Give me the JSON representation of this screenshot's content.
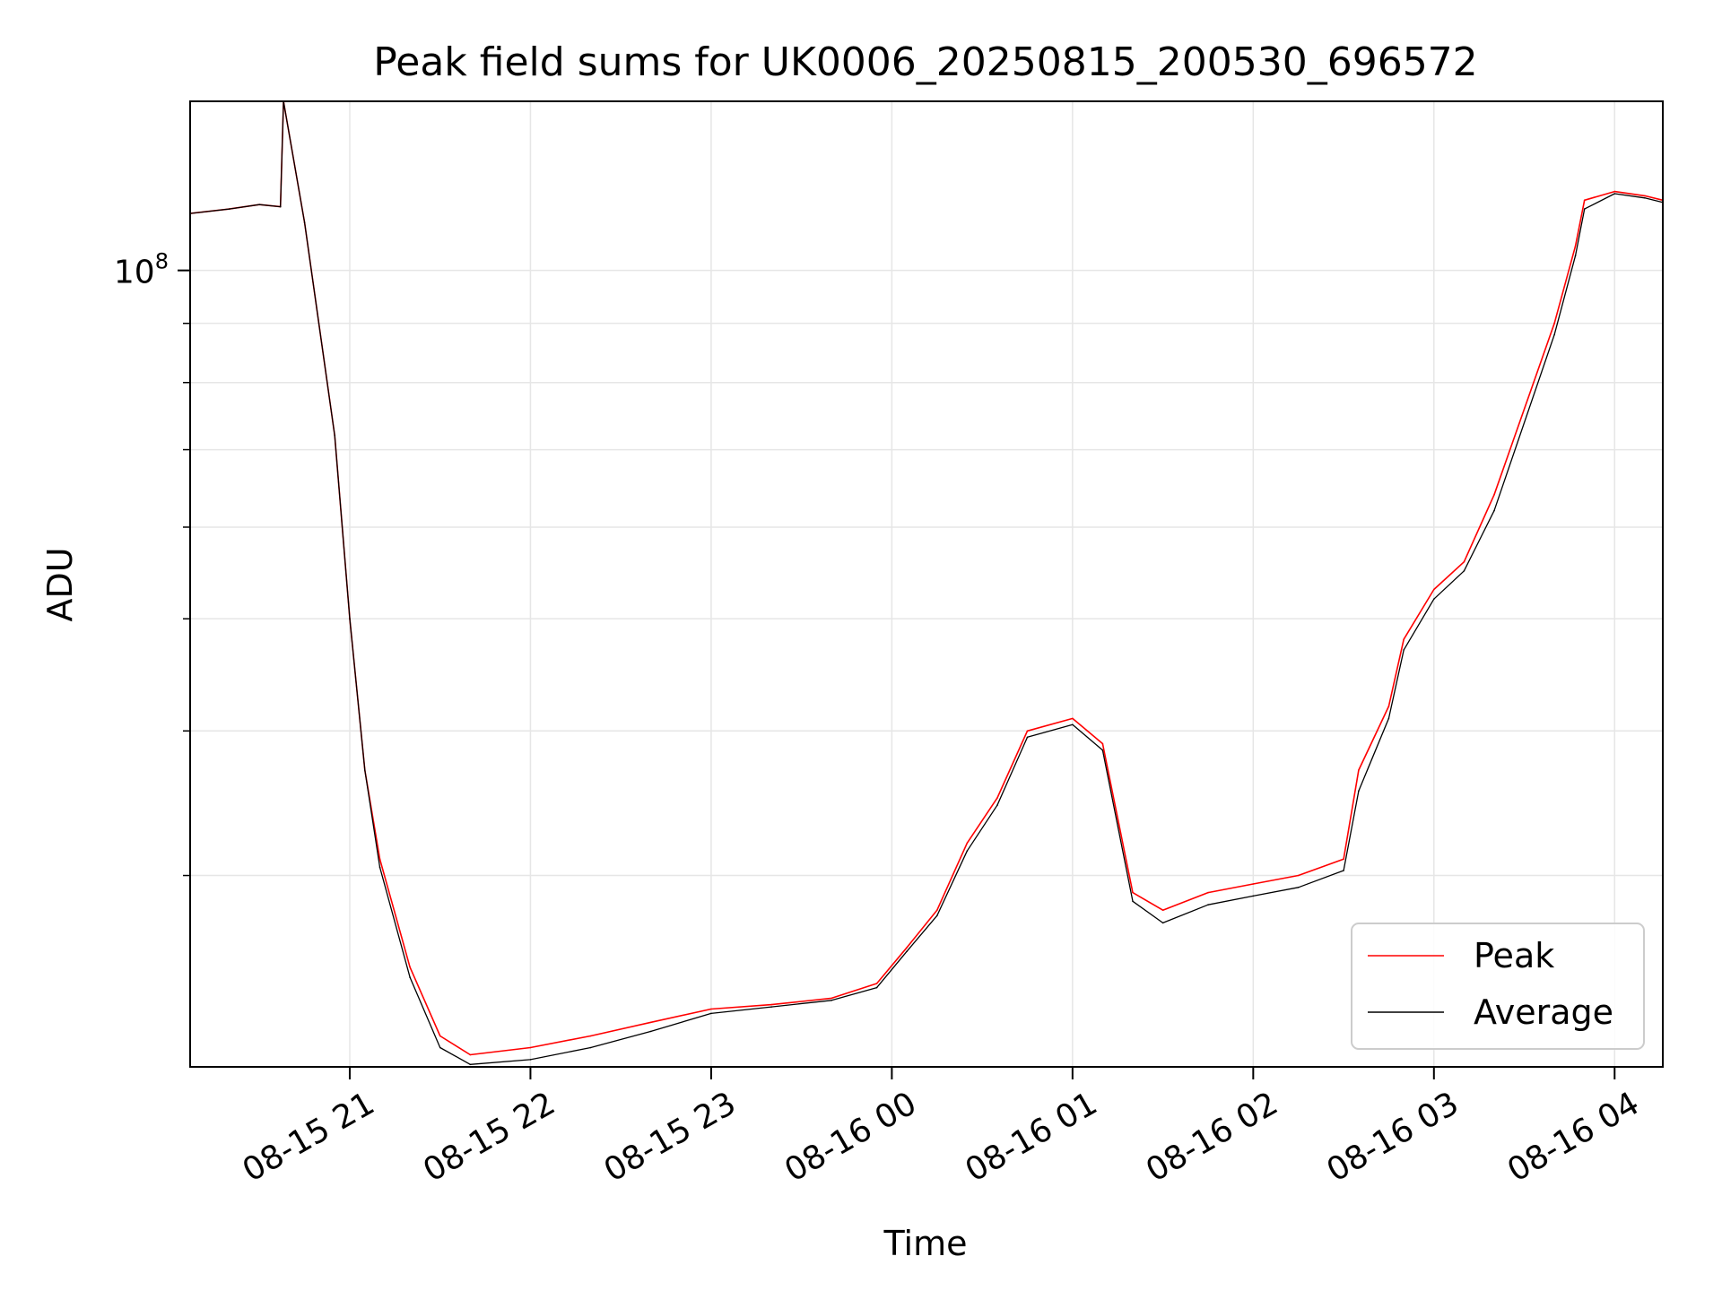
{
  "chart_data": {
    "type": "line",
    "title": "Peak field sums for UK0006_20250815_200530_696572",
    "xlabel": "Time",
    "ylabel": "ADU",
    "yscale": "log",
    "grid": true,
    "legend_position": "lower right",
    "x_tick_labels": [
      "08-15 21",
      "08-15 22",
      "08-15 23",
      "08-16 00",
      "08-16 01",
      "08-16 02",
      "08-16 03",
      "08-16 04"
    ],
    "y_tick_major": {
      "base": "10",
      "exponent": "8"
    },
    "xlim": [
      "2025-08-15 20:07",
      "2025-08-16 04:16"
    ],
    "ylim": [
      20500000,
      140000000
    ],
    "series": [
      {
        "name": "Peak",
        "color": "#ff0000",
        "x": [
          "2025-08-15 20:07",
          "2025-08-15 20:20",
          "2025-08-15 20:30",
          "2025-08-15 20:37",
          "2025-08-15 20:38",
          "2025-08-15 20:45",
          "2025-08-15 20:55",
          "2025-08-15 21:00",
          "2025-08-15 21:05",
          "2025-08-15 21:10",
          "2025-08-15 21:20",
          "2025-08-15 21:30",
          "2025-08-15 21:40",
          "2025-08-15 22:00",
          "2025-08-15 22:20",
          "2025-08-15 22:40",
          "2025-08-15 23:00",
          "2025-08-15 23:20",
          "2025-08-15 23:40",
          "2025-08-15 23:55",
          "2025-08-16 00:05",
          "2025-08-16 00:15",
          "2025-08-16 00:25",
          "2025-08-16 00:35",
          "2025-08-16 00:45",
          "2025-08-16 01:00",
          "2025-08-16 01:10",
          "2025-08-16 01:20",
          "2025-08-16 01:30",
          "2025-08-16 01:45",
          "2025-08-16 02:00",
          "2025-08-16 02:15",
          "2025-08-16 02:30",
          "2025-08-16 02:35",
          "2025-08-16 02:45",
          "2025-08-16 02:50",
          "2025-08-16 03:00",
          "2025-08-16 03:10",
          "2025-08-16 03:20",
          "2025-08-16 03:40",
          "2025-08-16 03:47",
          "2025-08-16 03:50",
          "2025-08-16 04:00",
          "2025-08-16 04:10",
          "2025-08-16 04:16"
        ],
        "values": [
          112000000,
          113000000,
          114000000,
          113500000,
          140000000,
          110000000,
          72000000,
          50000000,
          37000000,
          31000000,
          25000000,
          21800000,
          21000000,
          21300000,
          21800000,
          22400000,
          23000000,
          23200000,
          23500000,
          24200000,
          26000000,
          28000000,
          32000000,
          35000000,
          40000000,
          41000000,
          39000000,
          29000000,
          28000000,
          29000000,
          29500000,
          30000000,
          31000000,
          37000000,
          42000000,
          48000000,
          53000000,
          56000000,
          64000000,
          90000000,
          105000000,
          115000000,
          117000000,
          116000000,
          115000000
        ]
      },
      {
        "name": "Average",
        "color": "#000000",
        "x": [
          "2025-08-15 20:07",
          "2025-08-15 20:20",
          "2025-08-15 20:30",
          "2025-08-15 20:37",
          "2025-08-15 20:38",
          "2025-08-15 20:45",
          "2025-08-15 20:55",
          "2025-08-15 21:00",
          "2025-08-15 21:05",
          "2025-08-15 21:10",
          "2025-08-15 21:20",
          "2025-08-15 21:30",
          "2025-08-15 21:40",
          "2025-08-15 22:00",
          "2025-08-15 22:20",
          "2025-08-15 22:40",
          "2025-08-15 23:00",
          "2025-08-15 23:20",
          "2025-08-15 23:40",
          "2025-08-15 23:55",
          "2025-08-16 00:05",
          "2025-08-16 00:15",
          "2025-08-16 00:25",
          "2025-08-16 00:35",
          "2025-08-16 00:45",
          "2025-08-16 01:00",
          "2025-08-16 01:10",
          "2025-08-16 01:20",
          "2025-08-16 01:30",
          "2025-08-16 01:45",
          "2025-08-16 02:00",
          "2025-08-16 02:15",
          "2025-08-16 02:30",
          "2025-08-16 02:35",
          "2025-08-16 02:45",
          "2025-08-16 02:50",
          "2025-08-16 03:00",
          "2025-08-16 03:10",
          "2025-08-16 03:20",
          "2025-08-16 03:40",
          "2025-08-16 03:47",
          "2025-08-16 03:50",
          "2025-08-16 04:00",
          "2025-08-16 04:10",
          "2025-08-16 04:16"
        ],
        "values": [
          112000000,
          113000000,
          114000000,
          113500000,
          140000000,
          110000000,
          72000000,
          50000000,
          37000000,
          30500000,
          24500000,
          21300000,
          20600000,
          20800000,
          21300000,
          22000000,
          22800000,
          23100000,
          23400000,
          24000000,
          25800000,
          27700000,
          31500000,
          34500000,
          39500000,
          40500000,
          38500000,
          28500000,
          27300000,
          28300000,
          28800000,
          29300000,
          30300000,
          35500000,
          41000000,
          47000000,
          52000000,
          55000000,
          62000000,
          88000000,
          103000000,
          113000000,
          116500000,
          115500000,
          114500000
        ]
      }
    ]
  }
}
